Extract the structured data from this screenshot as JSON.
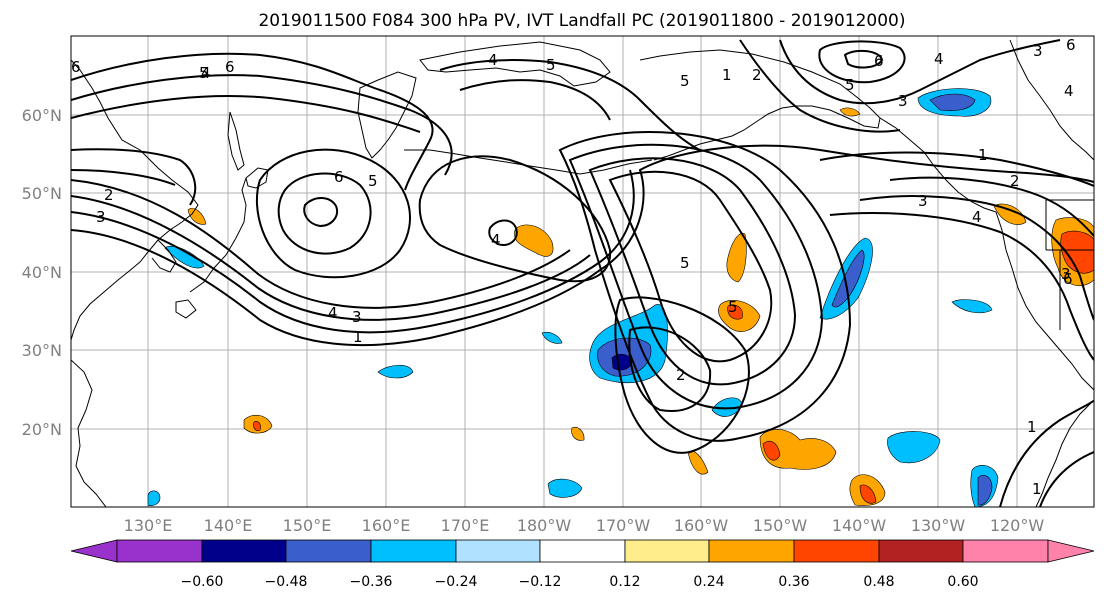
{
  "title": "2019011500 F084 300 hPa PV, IVT Landfall PC (2019011800 - 2019012000)",
  "latitude_labels": [
    "60°N",
    "50°N",
    "40°N",
    "30°N",
    "20°N"
  ],
  "longitude_labels": [
    "130°E",
    "140°E",
    "150°E",
    "160°E",
    "170°E",
    "180°W",
    "170°W",
    "160°W",
    "150°W",
    "140°W",
    "130°W",
    "120°W"
  ],
  "colorbar": {
    "tick_labels": [
      "−0.60",
      "−0.48",
      "−0.36",
      "−0.24",
      "−0.12",
      "0.12",
      "0.24",
      "0.36",
      "0.48",
      "0.60"
    ],
    "colors": [
      "#9932CC",
      "#00008B",
      "#3A5FCD",
      "#00BFFF",
      "#B0E2FF",
      "#FFFFFF",
      "#FFEC8B",
      "#FFA500",
      "#FF4500",
      "#B22222",
      "#FF82AB"
    ]
  },
  "contour_labels": [
    "6",
    "2",
    "3",
    "4",
    "5",
    "6",
    "4",
    "5",
    "4",
    "5",
    "6",
    "4",
    "3",
    "1",
    "5",
    "2",
    "5",
    "6",
    "3",
    "1",
    "2",
    "3",
    "4",
    "5",
    "1",
    "1",
    "3",
    "4",
    "6",
    "4",
    "1",
    "2",
    "5",
    "6",
    "3"
  ]
}
